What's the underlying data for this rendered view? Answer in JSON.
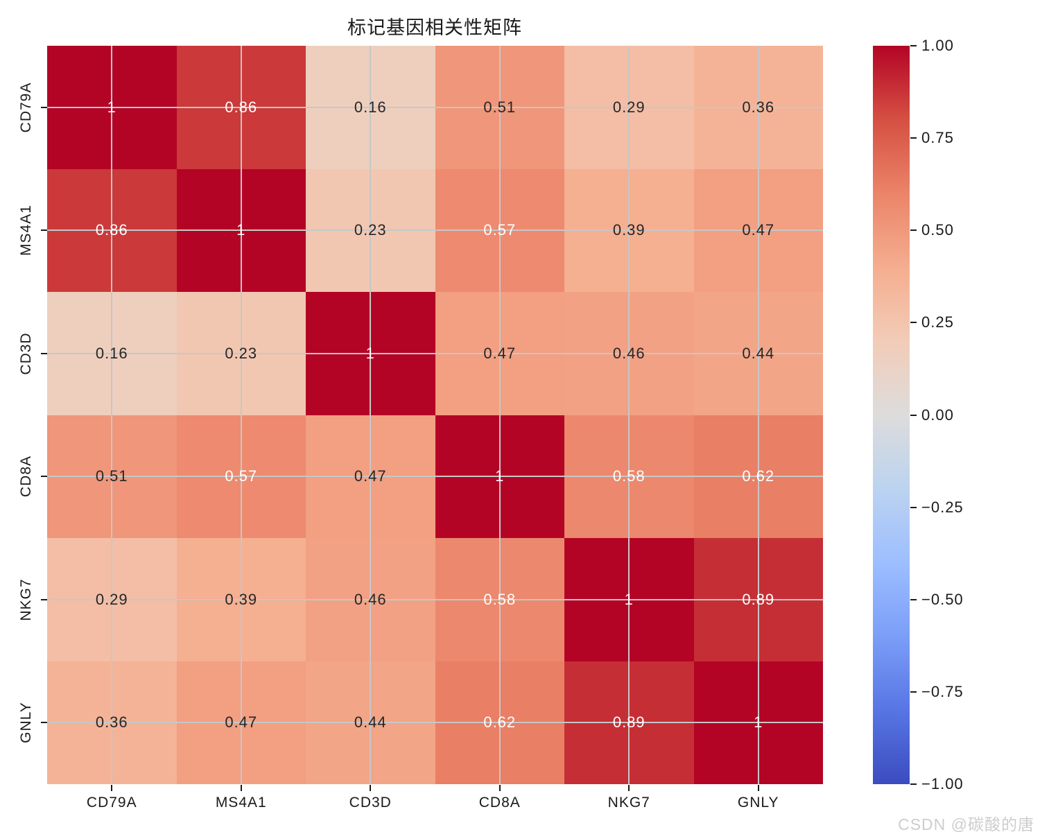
{
  "watermark": "CSDN @碳酸的唐",
  "chart_data": {
    "type": "heatmap",
    "title": "标记基因相关性矩阵",
    "categories": [
      "CD79A",
      "MS4A1",
      "CD3D",
      "CD8A",
      "NKG7",
      "GNLY"
    ],
    "x_tick_labels": [
      "CD79A",
      "MS4A1",
      "CD3D",
      "CD8A",
      "NKG7",
      "GNLY"
    ],
    "y_tick_labels": [
      "CD79A",
      "MS4A1",
      "CD3D",
      "CD8A",
      "NKG7",
      "GNLY"
    ],
    "matrix": [
      [
        1,
        0.86,
        0.16,
        0.51,
        0.29,
        0.36
      ],
      [
        0.86,
        1,
        0.23,
        0.57,
        0.39,
        0.47
      ],
      [
        0.16,
        0.23,
        1,
        0.47,
        0.46,
        0.44
      ],
      [
        0.51,
        0.57,
        0.47,
        1,
        0.58,
        0.62
      ],
      [
        0.29,
        0.39,
        0.46,
        0.58,
        1,
        0.89
      ],
      [
        0.36,
        0.47,
        0.44,
        0.62,
        0.89,
        1
      ]
    ],
    "vmin": -1,
    "vmax": 1,
    "colormap": "coolwarm",
    "annotations": true,
    "grid": true,
    "colorbar_position": "right",
    "colorbar_tick_labels": [
      "1.00",
      "0.75",
      "0.50",
      "0.25",
      "0.00",
      "−0.25",
      "−0.50",
      "−0.75",
      "−1.00"
    ]
  },
  "style": {
    "colormap_anchors": [
      "#3b4cc0",
      "#5875e4",
      "#7b9ef8",
      "#9dbeff",
      "#bcd3f0",
      "#dddcdc",
      "#f2ccb7",
      "#f5ad8f",
      "#eb8469",
      "#d55042",
      "#b40426"
    ],
    "grid_line_color": "#c7c7c7",
    "annot_text_dark": "#262626",
    "annot_text_light": "#ffffff",
    "luminance_threshold": 0.408,
    "axis_text_color": "#1a1a1a",
    "background": "#ffffff",
    "watermark_color": "#cdcdcd"
  }
}
